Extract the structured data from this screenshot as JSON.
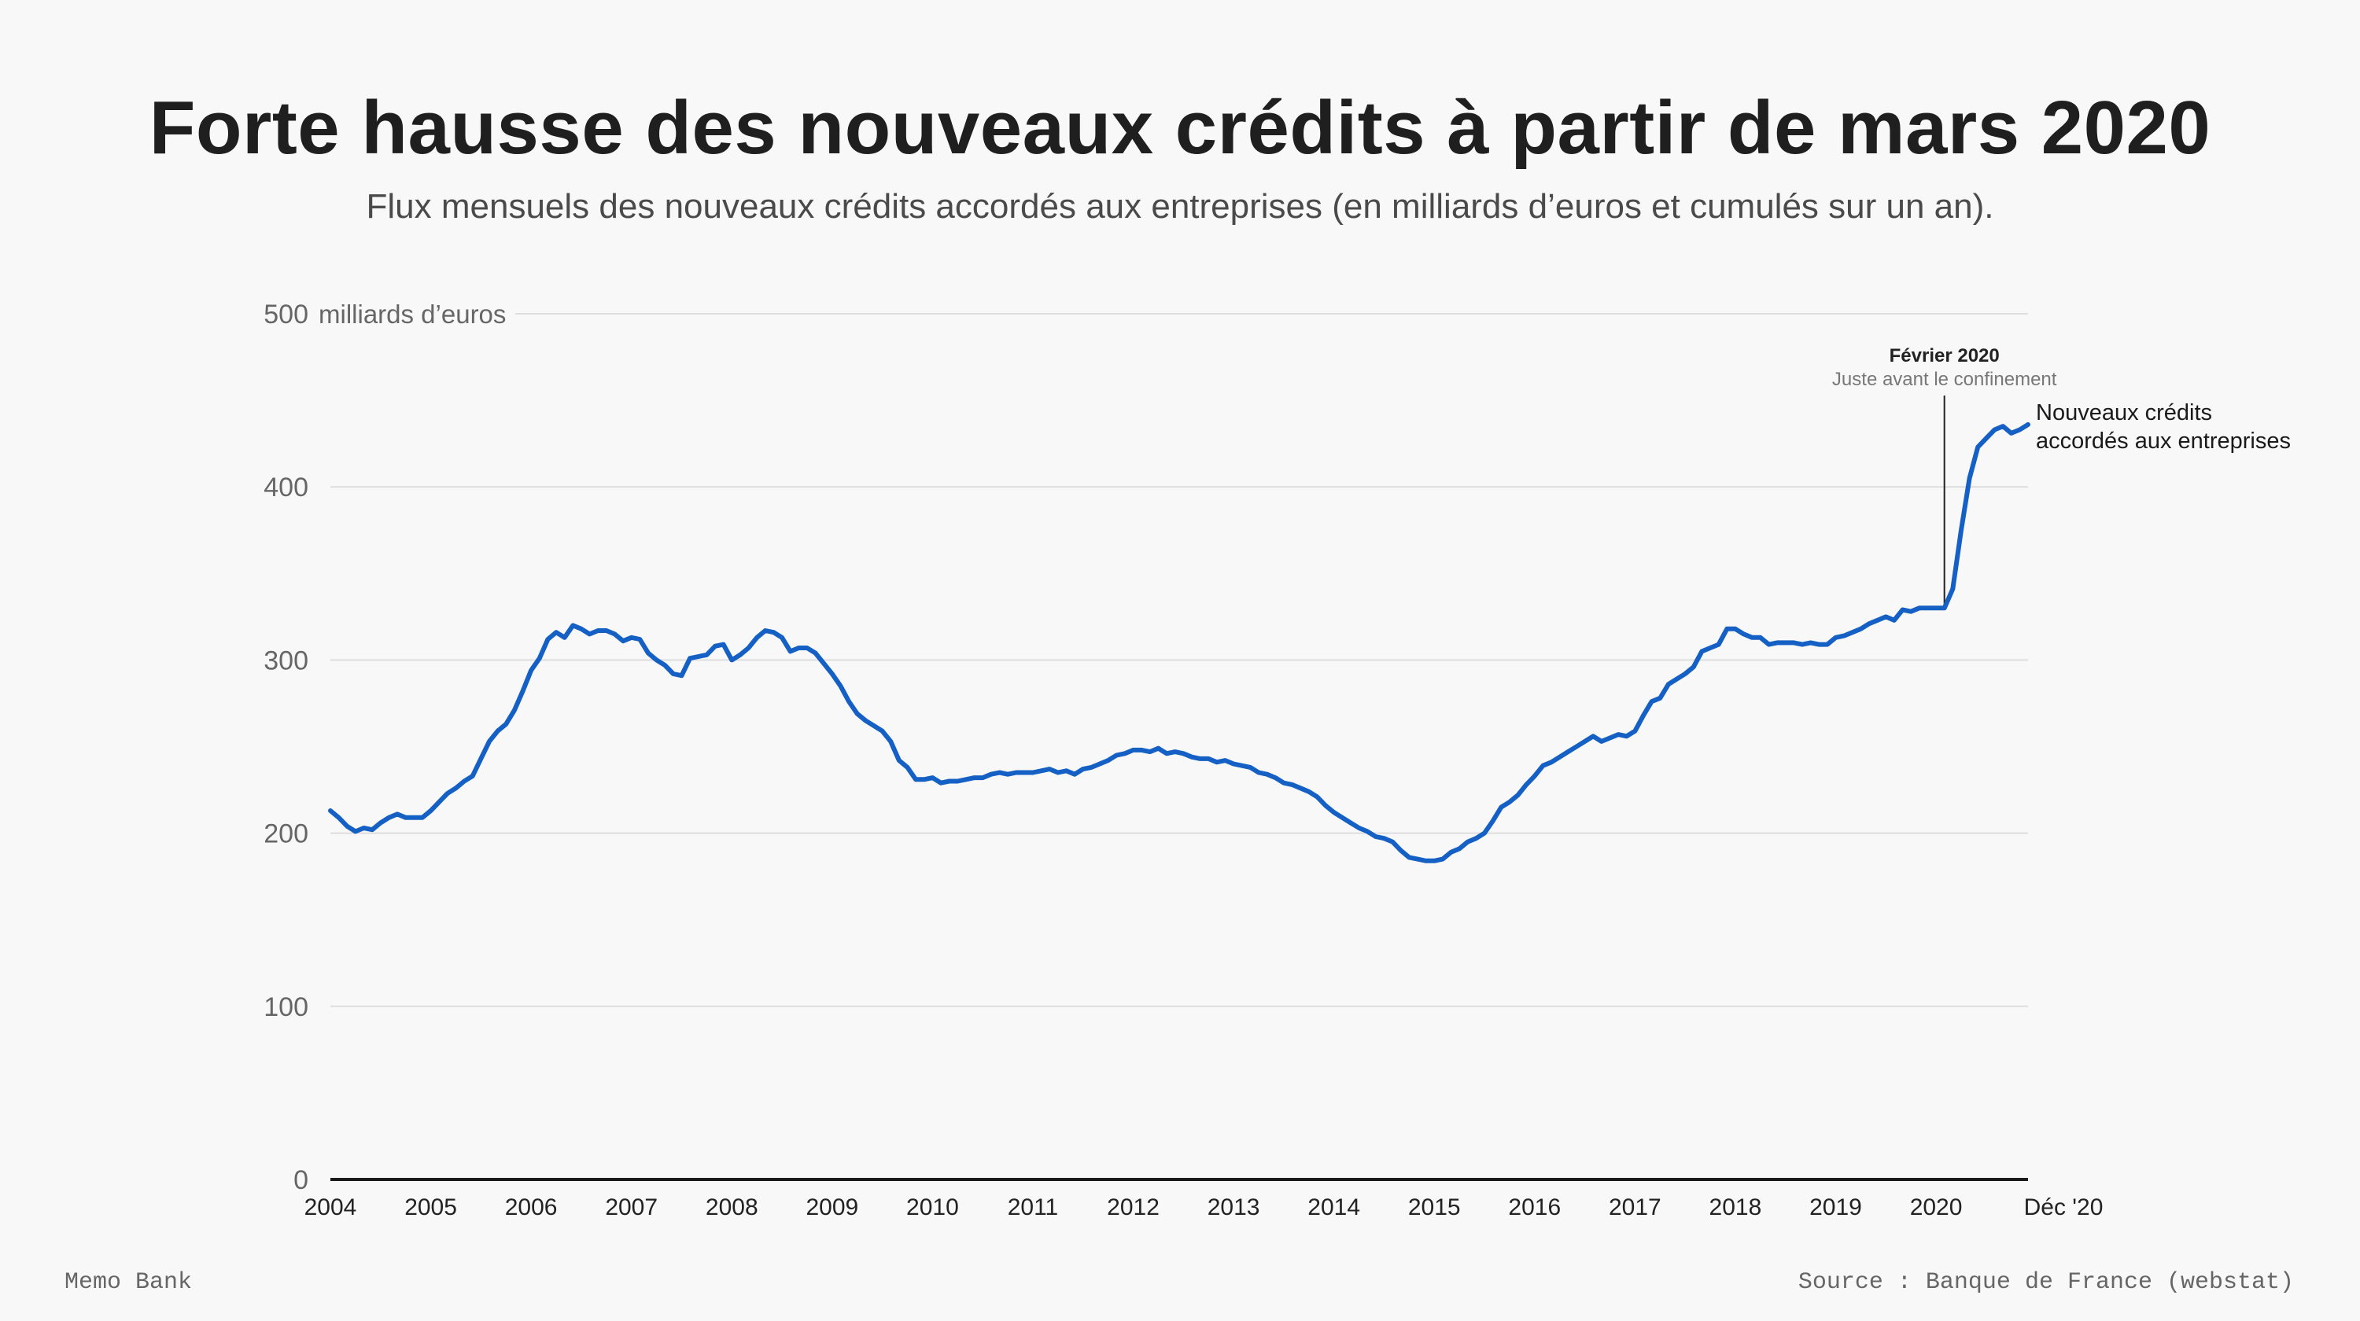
{
  "title": "Forte hausse des nouveaux crédits à partir de mars 2020",
  "subtitle": "Flux mensuels des nouveaux crédits accordés aux entreprises (en milliards d’euros et cumulés sur un an).",
  "footer": {
    "brand": "Memo Bank",
    "source": "Source : Banque de France (webstat)"
  },
  "colors": {
    "line": "#1560c4",
    "grid": "#dddddd",
    "axis": "#1a1a1a"
  },
  "chart_data": {
    "type": "line",
    "ylabel": "milliards d’euros",
    "ylim": [
      0,
      500
    ],
    "yticks": [
      0,
      100,
      200,
      300,
      400,
      500
    ],
    "xlim": [
      "2004-01",
      "2020-12"
    ],
    "xtick_labels": [
      "2004",
      "2005",
      "2006",
      "2007",
      "2008",
      "2009",
      "2010",
      "2011",
      "2012",
      "2013",
      "2014",
      "2015",
      "2016",
      "2017",
      "2018",
      "2019",
      "2020",
      "Déc '20"
    ],
    "grid": "horizontal",
    "series": [
      {
        "name": "Nouveaux crédits accordés aux entreprises",
        "label_line1": "Nouveaux crédits",
        "label_line2": "accordés aux entreprises",
        "points": [
          [
            "2004-01",
            213
          ],
          [
            "2004-02",
            209
          ],
          [
            "2004-03",
            204
          ],
          [
            "2004-04",
            201
          ],
          [
            "2004-05",
            203
          ],
          [
            "2004-06",
            202
          ],
          [
            "2004-07",
            206
          ],
          [
            "2004-08",
            209
          ],
          [
            "2004-09",
            211
          ],
          [
            "2004-10",
            209
          ],
          [
            "2004-11",
            209
          ],
          [
            "2004-12",
            209
          ],
          [
            "2005-01",
            213
          ],
          [
            "2005-02",
            218
          ],
          [
            "2005-03",
            223
          ],
          [
            "2005-04",
            226
          ],
          [
            "2005-05",
            230
          ],
          [
            "2005-06",
            233
          ],
          [
            "2005-07",
            243
          ],
          [
            "2005-08",
            253
          ],
          [
            "2005-09",
            259
          ],
          [
            "2005-10",
            263
          ],
          [
            "2005-11",
            271
          ],
          [
            "2005-12",
            282
          ],
          [
            "2006-01",
            294
          ],
          [
            "2006-02",
            301
          ],
          [
            "2006-03",
            312
          ],
          [
            "2006-04",
            316
          ],
          [
            "2006-05",
            313
          ],
          [
            "2006-06",
            320
          ],
          [
            "2006-07",
            318
          ],
          [
            "2006-08",
            315
          ],
          [
            "2006-09",
            317
          ],
          [
            "2006-10",
            317
          ],
          [
            "2006-11",
            315
          ],
          [
            "2006-12",
            311
          ],
          [
            "2007-01",
            313
          ],
          [
            "2007-02",
            312
          ],
          [
            "2007-03",
            304
          ],
          [
            "2007-04",
            300
          ],
          [
            "2007-05",
            297
          ],
          [
            "2007-06",
            292
          ],
          [
            "2007-07",
            291
          ],
          [
            "2007-08",
            301
          ],
          [
            "2007-09",
            302
          ],
          [
            "2007-10",
            303
          ],
          [
            "2007-11",
            308
          ],
          [
            "2007-12",
            309
          ],
          [
            "2008-01",
            300
          ],
          [
            "2008-02",
            303
          ],
          [
            "2008-03",
            307
          ],
          [
            "2008-04",
            313
          ],
          [
            "2008-05",
            317
          ],
          [
            "2008-06",
            316
          ],
          [
            "2008-07",
            313
          ],
          [
            "2008-08",
            305
          ],
          [
            "2008-09",
            307
          ],
          [
            "2008-10",
            307
          ],
          [
            "2008-11",
            304
          ],
          [
            "2008-12",
            298
          ],
          [
            "2009-01",
            292
          ],
          [
            "2009-02",
            285
          ],
          [
            "2009-03",
            276
          ],
          [
            "2009-04",
            269
          ],
          [
            "2009-05",
            265
          ],
          [
            "2009-06",
            262
          ],
          [
            "2009-07",
            259
          ],
          [
            "2009-08",
            253
          ],
          [
            "2009-09",
            242
          ],
          [
            "2009-10",
            238
          ],
          [
            "2009-11",
            231
          ],
          [
            "2009-12",
            231
          ],
          [
            "2010-01",
            232
          ],
          [
            "2010-02",
            229
          ],
          [
            "2010-03",
            230
          ],
          [
            "2010-04",
            230
          ],
          [
            "2010-05",
            231
          ],
          [
            "2010-06",
            232
          ],
          [
            "2010-07",
            232
          ],
          [
            "2010-08",
            234
          ],
          [
            "2010-09",
            235
          ],
          [
            "2010-10",
            234
          ],
          [
            "2010-11",
            235
          ],
          [
            "2010-12",
            235
          ],
          [
            "2011-01",
            235
          ],
          [
            "2011-02",
            236
          ],
          [
            "2011-03",
            237
          ],
          [
            "2011-04",
            235
          ],
          [
            "2011-05",
            236
          ],
          [
            "2011-06",
            234
          ],
          [
            "2011-07",
            237
          ],
          [
            "2011-08",
            238
          ],
          [
            "2011-09",
            240
          ],
          [
            "2011-10",
            242
          ],
          [
            "2011-11",
            245
          ],
          [
            "2011-12",
            246
          ],
          [
            "2012-01",
            248
          ],
          [
            "2012-02",
            248
          ],
          [
            "2012-03",
            247
          ],
          [
            "2012-04",
            249
          ],
          [
            "2012-05",
            246
          ],
          [
            "2012-06",
            247
          ],
          [
            "2012-07",
            246
          ],
          [
            "2012-08",
            244
          ],
          [
            "2012-09",
            243
          ],
          [
            "2012-10",
            243
          ],
          [
            "2012-11",
            241
          ],
          [
            "2012-12",
            242
          ],
          [
            "2013-01",
            240
          ],
          [
            "2013-02",
            239
          ],
          [
            "2013-03",
            238
          ],
          [
            "2013-04",
            235
          ],
          [
            "2013-05",
            234
          ],
          [
            "2013-06",
            232
          ],
          [
            "2013-07",
            229
          ],
          [
            "2013-08",
            228
          ],
          [
            "2013-09",
            226
          ],
          [
            "2013-10",
            224
          ],
          [
            "2013-11",
            221
          ],
          [
            "2013-12",
            216
          ],
          [
            "2014-01",
            212
          ],
          [
            "2014-02",
            209
          ],
          [
            "2014-03",
            206
          ],
          [
            "2014-04",
            203
          ],
          [
            "2014-05",
            201
          ],
          [
            "2014-06",
            198
          ],
          [
            "2014-07",
            197
          ],
          [
            "2014-08",
            195
          ],
          [
            "2014-09",
            190
          ],
          [
            "2014-10",
            186
          ],
          [
            "2014-11",
            185
          ],
          [
            "2014-12",
            184
          ],
          [
            "2015-01",
            184
          ],
          [
            "2015-02",
            185
          ],
          [
            "2015-03",
            189
          ],
          [
            "2015-04",
            191
          ],
          [
            "2015-05",
            195
          ],
          [
            "2015-06",
            197
          ],
          [
            "2015-07",
            200
          ],
          [
            "2015-08",
            207
          ],
          [
            "2015-09",
            215
          ],
          [
            "2015-10",
            218
          ],
          [
            "2015-11",
            222
          ],
          [
            "2015-12",
            228
          ],
          [
            "2016-01",
            233
          ],
          [
            "2016-02",
            239
          ],
          [
            "2016-03",
            241
          ],
          [
            "2016-04",
            244
          ],
          [
            "2016-05",
            247
          ],
          [
            "2016-06",
            250
          ],
          [
            "2016-07",
            253
          ],
          [
            "2016-08",
            256
          ],
          [
            "2016-09",
            253
          ],
          [
            "2016-10",
            255
          ],
          [
            "2016-11",
            257
          ],
          [
            "2016-12",
            256
          ],
          [
            "2017-01",
            259
          ],
          [
            "2017-02",
            268
          ],
          [
            "2017-03",
            276
          ],
          [
            "2017-04",
            278
          ],
          [
            "2017-05",
            286
          ],
          [
            "2017-06",
            289
          ],
          [
            "2017-07",
            292
          ],
          [
            "2017-08",
            296
          ],
          [
            "2017-09",
            305
          ],
          [
            "2017-10",
            307
          ],
          [
            "2017-11",
            309
          ],
          [
            "2017-12",
            318
          ],
          [
            "2018-01",
            318
          ],
          [
            "2018-02",
            315
          ],
          [
            "2018-03",
            313
          ],
          [
            "2018-04",
            313
          ],
          [
            "2018-05",
            309
          ],
          [
            "2018-06",
            310
          ],
          [
            "2018-07",
            310
          ],
          [
            "2018-08",
            310
          ],
          [
            "2018-09",
            309
          ],
          [
            "2018-10",
            310
          ],
          [
            "2018-11",
            309
          ],
          [
            "2018-12",
            309
          ],
          [
            "2019-01",
            313
          ],
          [
            "2019-02",
            314
          ],
          [
            "2019-03",
            316
          ],
          [
            "2019-04",
            318
          ],
          [
            "2019-05",
            321
          ],
          [
            "2019-06",
            323
          ],
          [
            "2019-07",
            325
          ],
          [
            "2019-08",
            323
          ],
          [
            "2019-09",
            329
          ],
          [
            "2019-10",
            328
          ],
          [
            "2019-11",
            330
          ],
          [
            "2019-12",
            330
          ],
          [
            "2020-01",
            330
          ],
          [
            "2020-02",
            330
          ],
          [
            "2020-03",
            341
          ],
          [
            "2020-04",
            375
          ],
          [
            "2020-05",
            405
          ],
          [
            "2020-06",
            423
          ],
          [
            "2020-07",
            428
          ],
          [
            "2020-08",
            433
          ],
          [
            "2020-09",
            435
          ],
          [
            "2020-10",
            431
          ],
          [
            "2020-11",
            433
          ],
          [
            "2020-12",
            436
          ]
        ]
      }
    ],
    "annotations": [
      {
        "x": "2020-02",
        "title": "Février 2020",
        "subtitle": "Juste avant le confinement"
      }
    ]
  }
}
